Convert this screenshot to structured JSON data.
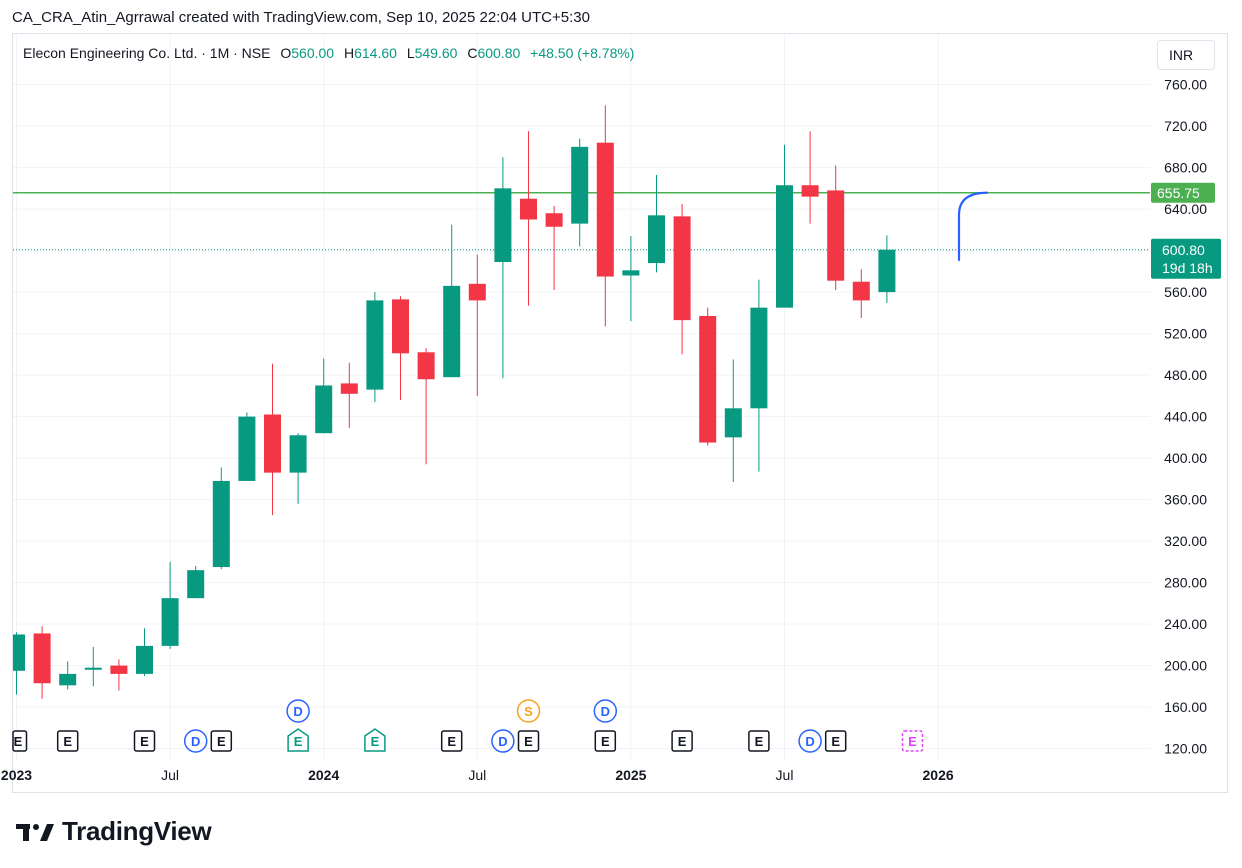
{
  "header": {
    "note": "CA_CRA_Atin_Agrrawal created with TradingView.com, Sep 10, 2025 22:04 UTC+5:30"
  },
  "legend": {
    "symbol": "Elecon Engineering Co. Ltd. · 1M · NSE",
    "o_label": "O",
    "o_value": "560.00",
    "h_label": "H",
    "h_value": "614.60",
    "l_label": "L",
    "l_value": "549.60",
    "c_label": "C",
    "c_value": "600.80",
    "change": "+48.50 (+8.78%)"
  },
  "currency": "INR",
  "brand": {
    "name": "TradingView"
  },
  "colors": {
    "up": "#089981",
    "down": "#f23645",
    "level": "#4caf50",
    "projection": "#2962ff",
    "grid": "#f0f3fa"
  },
  "chart_data": {
    "type": "candlestick",
    "interval": "1M",
    "y_axis": {
      "ticks": [
        120,
        160,
        200,
        240,
        280,
        320,
        360,
        400,
        440,
        480,
        520,
        560,
        600,
        640,
        680,
        720,
        760
      ],
      "range": [
        100,
        780
      ],
      "side": "right"
    },
    "x_axis": {
      "labels": [
        "2023",
        "Jul",
        "2024",
        "Jul",
        "2025",
        "Jul",
        "2026"
      ],
      "label_index": [
        0,
        6,
        12,
        18,
        24,
        30,
        36
      ]
    },
    "candles": [
      {
        "t": "2022-11",
        "o": 195,
        "h": 232,
        "l": 172,
        "c": 230
      },
      {
        "t": "2022-12",
        "o": 231,
        "h": 238,
        "l": 168,
        "c": 183
      },
      {
        "t": "2023-01",
        "o": 181,
        "h": 204,
        "l": 177,
        "c": 192
      },
      {
        "t": "2023-02",
        "o": 196,
        "h": 218,
        "l": 180,
        "c": 198
      },
      {
        "t": "2023-03",
        "o": 200,
        "h": 206,
        "l": 176,
        "c": 192
      },
      {
        "t": "2023-04",
        "o": 192,
        "h": 236,
        "l": 190,
        "c": 219
      },
      {
        "t": "2023-05",
        "o": 219,
        "h": 300,
        "l": 216,
        "c": 265
      },
      {
        "t": "2023-06",
        "o": 265,
        "h": 296,
        "l": 265,
        "c": 292
      },
      {
        "t": "2023-07",
        "o": 295,
        "h": 391,
        "l": 293,
        "c": 378
      },
      {
        "t": "2023-08",
        "o": 378,
        "h": 444,
        "l": 378,
        "c": 440
      },
      {
        "t": "2023-09",
        "o": 442,
        "h": 491,
        "l": 345,
        "c": 386
      },
      {
        "t": "2023-10",
        "o": 386,
        "h": 424,
        "l": 356,
        "c": 422
      },
      {
        "t": "2023-11",
        "o": 424,
        "h": 496,
        "l": 424,
        "c": 470
      },
      {
        "t": "2023-12",
        "o": 472,
        "h": 492,
        "l": 429,
        "c": 462
      },
      {
        "t": "2024-01",
        "o": 466,
        "h": 560,
        "l": 454,
        "c": 552
      },
      {
        "t": "2024-02",
        "o": 553,
        "h": 556,
        "l": 456,
        "c": 501
      },
      {
        "t": "2024-03",
        "o": 502,
        "h": 506,
        "l": 394,
        "c": 476
      },
      {
        "t": "2024-04",
        "o": 478,
        "h": 625,
        "l": 478,
        "c": 566
      },
      {
        "t": "2024-05",
        "o": 568,
        "h": 596,
        "l": 460,
        "c": 552
      },
      {
        "t": "2024-06",
        "o": 589,
        "h": 690,
        "l": 477,
        "c": 660
      },
      {
        "t": "2024-07",
        "o": 650,
        "h": 715,
        "l": 547,
        "c": 630
      },
      {
        "t": "2024-08",
        "o": 636,
        "h": 643,
        "l": 562,
        "c": 623
      },
      {
        "t": "2024-09",
        "o": 626,
        "h": 708,
        "l": 604,
        "c": 700
      },
      {
        "t": "2024-10",
        "o": 704,
        "h": 740,
        "l": 527,
        "c": 575
      },
      {
        "t": "2024-11",
        "o": 576,
        "h": 614,
        "l": 532,
        "c": 581
      },
      {
        "t": "2024-12",
        "o": 588,
        "h": 673,
        "l": 579,
        "c": 634
      },
      {
        "t": "2025-01",
        "o": 633,
        "h": 645,
        "l": 500,
        "c": 533
      },
      {
        "t": "2025-02",
        "o": 537,
        "h": 545,
        "l": 412,
        "c": 415
      },
      {
        "t": "2025-03",
        "o": 420,
        "h": 495,
        "l": 377,
        "c": 448
      },
      {
        "t": "2025-04",
        "o": 448,
        "h": 572,
        "l": 387,
        "c": 545
      },
      {
        "t": "2025-05",
        "o": 545,
        "h": 702,
        "l": 545,
        "c": 663
      },
      {
        "t": "2025-06",
        "o": 663,
        "h": 715,
        "l": 626,
        "c": 652
      },
      {
        "t": "2025-07",
        "o": 658,
        "h": 682,
        "l": 562,
        "c": 571
      },
      {
        "t": "2025-08",
        "o": 570,
        "h": 582,
        "l": 535,
        "c": 552
      },
      {
        "t": "2025-09",
        "o": 560,
        "h": 614.6,
        "l": 549.6,
        "c": 600.8
      }
    ],
    "horizontal_line": {
      "value": 655.75,
      "label": "655.75"
    },
    "last_price": {
      "value": 600.8,
      "label": "600.80",
      "countdown": "19d 18h"
    },
    "projection": {
      "from": 591,
      "to": 655.75
    },
    "events": [
      {
        "i": 0,
        "row": "bottom",
        "kind": "E"
      },
      {
        "i": 2,
        "row": "bottom",
        "kind": "E"
      },
      {
        "i": 5,
        "row": "bottom",
        "kind": "E"
      },
      {
        "i": 7,
        "row": "bottom",
        "kind": "D"
      },
      {
        "i": 8,
        "row": "bottom",
        "kind": "E"
      },
      {
        "i": 11,
        "row": "top",
        "kind": "D"
      },
      {
        "i": 11,
        "row": "bottom",
        "kind": "E",
        "style": "teal"
      },
      {
        "i": 14,
        "row": "bottom",
        "kind": "E",
        "style": "teal"
      },
      {
        "i": 17,
        "row": "bottom",
        "kind": "E"
      },
      {
        "i": 19,
        "row": "bottom",
        "kind": "D"
      },
      {
        "i": 20,
        "row": "bottom",
        "kind": "E"
      },
      {
        "i": 20,
        "row": "top",
        "kind": "S"
      },
      {
        "i": 23,
        "row": "top",
        "kind": "D"
      },
      {
        "i": 23,
        "row": "bottom",
        "kind": "E"
      },
      {
        "i": 26,
        "row": "bottom",
        "kind": "E"
      },
      {
        "i": 29,
        "row": "bottom",
        "kind": "E"
      },
      {
        "i": 31,
        "row": "bottom",
        "kind": "D"
      },
      {
        "i": 32,
        "row": "bottom",
        "kind": "E"
      },
      {
        "i": 35,
        "row": "bottom",
        "kind": "E",
        "style": "future"
      }
    ]
  }
}
